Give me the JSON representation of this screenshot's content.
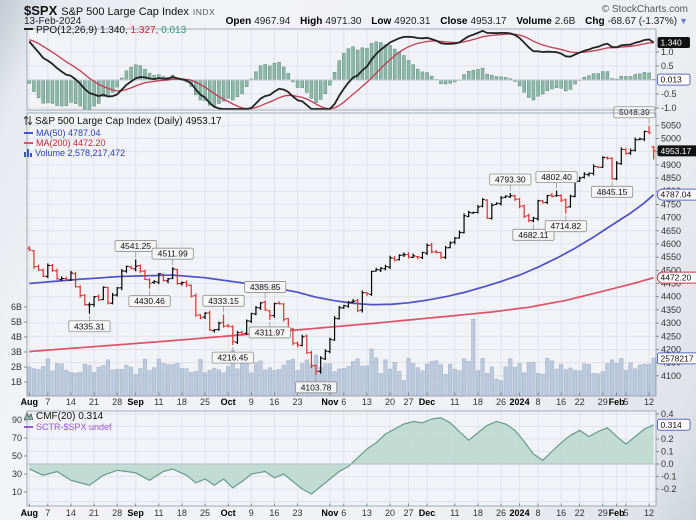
{
  "header": {
    "symbol": "$SPX",
    "name": "S&P 500 Large Cap Index",
    "exchange": "INDX",
    "copyright": "© StockCharts.com",
    "date": "13-Feb-2024",
    "quote": {
      "open_label": "Open",
      "open": "4967.94",
      "high_label": "High",
      "high": "4971.30",
      "low_label": "Low",
      "low": "4920.31",
      "close_label": "Close",
      "close": "4953.17",
      "volume_label": "Volume",
      "volume": "2.6B",
      "chg_label": "Chg",
      "chg": "-68.67 (-1.37%)"
    }
  },
  "ppo_panel": {
    "legend_label": "PPO(12,26,9)",
    "value_main": "1.340,",
    "value_signal": "1.327,",
    "value_hist": "0.013",
    "tag_main": "1.340",
    "tag_hist": "0.013",
    "right_ticks": [
      "1.0",
      "0.5",
      "-0.5",
      "-1.0"
    ]
  },
  "main_panel": {
    "title": "S&P 500 Large Cap Index (Daily) 4953.17",
    "ma50_label": "MA(50) 4787.04",
    "ma200_label": "MA(200) 4472.20",
    "volume_label": "Volume 2,578,217,472",
    "tag_close": "4953.17",
    "tag_ma50": "4787.04",
    "tag_ma200": "4472.20",
    "tag_volume": "2578217",
    "volume_axis_labels": [
      "6B",
      "5B",
      "4B",
      "3B",
      "2B",
      "1B"
    ]
  },
  "cmf_panel": {
    "legend": "CMF(20) 0.314",
    "sctr_legend": "SCTR-$SPX undef",
    "tag": "0.314",
    "right_ticks": [
      "0.4",
      "0.2",
      "0.1",
      "0.0",
      "-0.1",
      "-0.2"
    ],
    "left_ticks": [
      "90",
      "70",
      "50",
      "30",
      "10"
    ]
  },
  "colors": {
    "up": "#000000",
    "down": "#e02e2e",
    "ma50": "#4f51c8",
    "ma200": "#e0506a",
    "volume_fill": "#a8bcd4",
    "volume_edge": "#7e95b5",
    "ppo_line": "#222222",
    "ppo_signal": "#c23b56",
    "ppo_hist_fill": "#8cb8a8",
    "ppo_hist_edge": "#5d8d7d",
    "cmf_fill": "#bcd8cf",
    "cmf_line": "#679b8c",
    "sctr": "#9b59d0",
    "tag_dark": "#111111",
    "tag_blue": "#5b6bc4",
    "tag_red": "#cc3344"
  },
  "chart_data": {
    "type": "candlestick-ohlc",
    "symbol": "$SPX",
    "title": "S&P 500 Large Cap Index (Daily)",
    "date_range": "01-Aug-2023 to 13-Feb-2024",
    "price_axis": {
      "min": 4100,
      "max": 5050,
      "step": 50
    },
    "volume_axis_billions": {
      "min": 1,
      "max": 6,
      "step": 1
    },
    "last_values": {
      "close": 4953.17,
      "ma50": 4787.04,
      "ma200": 4472.2,
      "volume": 2578217472,
      "ppo": 1.34,
      "ppo_signal": 1.327,
      "ppo_hist": 0.013,
      "cmf": 0.314
    },
    "open_first": 4584.0,
    "closes": [
      4576.73,
      4513.39,
      4501.89,
      4478.03,
      4518.44,
      4499.38,
      4467.71,
      4468.83,
      4464.05,
      4489.72,
      4437.86,
      4404.33,
      4370.36,
      4369.71,
      4399.77,
      4387.55,
      4436.01,
      4376.31,
      4405.71,
      4433.31,
      4497.63,
      4514.87,
      4507.66,
      4515.77,
      4496.83,
      4465.48,
      4451.14,
      4457.49,
      4487.46,
      4461.9,
      4467.44,
      4505.1,
      4450.32,
      4453.53,
      4443.95,
      4402.2,
      4330.0,
      4320.06,
      4337.44,
      4273.53,
      4274.51,
      4299.7,
      4288.05,
      4288.39,
      4229.45,
      4263.75,
      4258.19,
      4308.5,
      4335.66,
      4358.24,
      4376.95,
      4349.61,
      4327.78,
      4373.63,
      4373.2,
      4314.6,
      4278.0,
      4224.16,
      4217.04,
      4247.68,
      4186.77,
      4137.23,
      4117.37,
      4166.82,
      4193.8,
      4237.86,
      4317.78,
      4358.34,
      4365.98,
      4378.38,
      4382.78,
      4347.35,
      4415.24,
      4411.55,
      4495.7,
      4502.88,
      4508.24,
      4514.02,
      4547.38,
      4538.19,
      4556.62,
      4559.34,
      4550.43,
      4554.89,
      4550.58,
      4567.8,
      4594.63,
      4569.78,
      4567.18,
      4549.34,
      4585.59,
      4604.37,
      4622.44,
      4643.7,
      4707.09,
      4719.55,
      4719.19,
      4740.56,
      4768.37,
      4698.35,
      4746.75,
      4754.63,
      4774.75,
      4781.58,
      4783.35,
      4769.83,
      4742.83,
      4704.81,
      4688.68,
      4697.24,
      4763.54,
      4756.5,
      4783.45,
      4780.24,
      4783.83,
      4765.98,
      4739.21,
      4780.94,
      4839.81,
      4850.43,
      4864.6,
      4868.55,
      4894.16,
      4890.97,
      4927.93,
      4924.97,
      4845.65,
      4906.19,
      4958.61,
      4942.81,
      4954.23,
      4995.06,
      4997.91,
      5026.61,
      5021.84,
      4953.17
    ],
    "ohlc_overrides": {
      "13": {
        "l": 4335.31
      },
      "23": {
        "h": 4541.25
      },
      "26": {
        "l": 4430.46
      },
      "31": {
        "h": 4511.99
      },
      "42": {
        "h": 4333.15
      },
      "44": {
        "l": 4216.45
      },
      "51": {
        "h": 4385.85
      },
      "52": {
        "l": 4311.97
      },
      "62": {
        "l": 4103.78
      },
      "104": {
        "h": 4793.3
      },
      "109": {
        "l": 4682.11
      },
      "114": {
        "h": 4802.4
      },
      "116": {
        "l": 4714.82
      },
      "126": {
        "l": 4845.15
      },
      "134": {
        "h": 5048.39
      },
      "135": {
        "o": 4967.94,
        "h": 4971.3,
        "l": 4920.31
      }
    },
    "annotations": [
      {
        "day": 13,
        "text": "4335.31",
        "pos": "below"
      },
      {
        "day": 23,
        "text": "4541.25",
        "pos": "above"
      },
      {
        "day": 26,
        "text": "4430.46",
        "pos": "below"
      },
      {
        "day": 31,
        "text": "4511.99",
        "pos": "above"
      },
      {
        "day": 42,
        "text": "4333.15",
        "pos": "above"
      },
      {
        "day": 44,
        "text": "4216.45",
        "pos": "below"
      },
      {
        "day": 51,
        "text": "4385.85",
        "pos": "above"
      },
      {
        "day": 52,
        "text": "4311.97",
        "pos": "below"
      },
      {
        "day": 62,
        "text": "4103.78",
        "pos": "below"
      },
      {
        "day": 104,
        "text": "4793.30",
        "pos": "above"
      },
      {
        "day": 109,
        "text": "4682.11",
        "pos": "below"
      },
      {
        "day": 114,
        "text": "4802.40",
        "pos": "above"
      },
      {
        "day": 116,
        "text": "4714.82",
        "pos": "below"
      },
      {
        "day": 126,
        "text": "4845.15",
        "pos": "below"
      },
      {
        "day": 134,
        "text": "5048.39",
        "pos": "above"
      }
    ],
    "x_ticks": [
      {
        "label": "Aug",
        "day": 0,
        "major": true
      },
      {
        "label": "7",
        "day": 4
      },
      {
        "label": "14",
        "day": 9
      },
      {
        "label": "21",
        "day": 14
      },
      {
        "label": "28",
        "day": 19
      },
      {
        "label": "Sep",
        "day": 23,
        "major": true
      },
      {
        "label": "11",
        "day": 28
      },
      {
        "label": "18",
        "day": 33
      },
      {
        "label": "25",
        "day": 38
      },
      {
        "label": "Oct",
        "day": 43,
        "major": true
      },
      {
        "label": "9",
        "day": 48
      },
      {
        "label": "16",
        "day": 53
      },
      {
        "label": "23",
        "day": 58
      },
      {
        "label": "Nov",
        "day": 65,
        "major": true
      },
      {
        "label": "6",
        "day": 68
      },
      {
        "label": "13",
        "day": 73
      },
      {
        "label": "20",
        "day": 78
      },
      {
        "label": "27",
        "day": 82
      },
      {
        "label": "Dec",
        "day": 86,
        "major": true
      },
      {
        "label": "11",
        "day": 92
      },
      {
        "label": "18",
        "day": 97
      },
      {
        "label": "26",
        "day": 102
      },
      {
        "label": "2024",
        "day": 106,
        "major": true
      },
      {
        "label": "8",
        "day": 110
      },
      {
        "label": "16",
        "day": 115
      },
      {
        "label": "22",
        "day": 119
      },
      {
        "label": "29",
        "day": 124
      },
      {
        "label": "Feb",
        "day": 127,
        "major": true
      },
      {
        "label": "5",
        "day": 129
      },
      {
        "label": "12",
        "day": 134
      }
    ],
    "ma50_points": [
      [
        0,
        4450
      ],
      [
        10,
        4465
      ],
      [
        20,
        4477
      ],
      [
        31,
        4482
      ],
      [
        38,
        4472
      ],
      [
        45,
        4455
      ],
      [
        52,
        4437
      ],
      [
        58,
        4417
      ],
      [
        62,
        4398
      ],
      [
        66,
        4385
      ],
      [
        70,
        4375
      ],
      [
        74,
        4370
      ],
      [
        78,
        4371
      ],
      [
        82,
        4377
      ],
      [
        86,
        4387
      ],
      [
        90,
        4400
      ],
      [
        94,
        4416
      ],
      [
        98,
        4436
      ],
      [
        102,
        4458
      ],
      [
        106,
        4482
      ],
      [
        110,
        4512
      ],
      [
        114,
        4546
      ],
      [
        118,
        4584
      ],
      [
        122,
        4626
      ],
      [
        126,
        4672
      ],
      [
        130,
        4717
      ],
      [
        133,
        4756
      ],
      [
        135,
        4787
      ]
    ],
    "ma200_points": [
      [
        0,
        4192
      ],
      [
        15,
        4212
      ],
      [
        30,
        4232
      ],
      [
        45,
        4254
      ],
      [
        60,
        4277
      ],
      [
        75,
        4300
      ],
      [
        90,
        4325
      ],
      [
        100,
        4342
      ],
      [
        108,
        4360
      ],
      [
        116,
        4386
      ],
      [
        122,
        4412
      ],
      [
        127,
        4434
      ],
      [
        131,
        4452
      ],
      [
        135,
        4472.2
      ]
    ],
    "cmf_points": [
      [
        0,
        -0.04
      ],
      [
        3,
        -0.09
      ],
      [
        6,
        -0.06
      ],
      [
        9,
        -0.13
      ],
      [
        13,
        -0.17
      ],
      [
        16,
        -0.09
      ],
      [
        19,
        -0.05
      ],
      [
        23,
        -0.07
      ],
      [
        26,
        -0.13
      ],
      [
        29,
        -0.06
      ],
      [
        31,
        -0.04
      ],
      [
        34,
        -0.09
      ],
      [
        36,
        -0.15
      ],
      [
        38,
        -0.12
      ],
      [
        40,
        -0.17
      ],
      [
        42,
        -0.12
      ],
      [
        44,
        -0.19
      ],
      [
        46,
        -0.14
      ],
      [
        48,
        -0.08
      ],
      [
        51,
        -0.06
      ],
      [
        53,
        -0.11
      ],
      [
        55,
        -0.08
      ],
      [
        57,
        -0.14
      ],
      [
        59,
        -0.2
      ],
      [
        61,
        -0.24
      ],
      [
        63,
        -0.18
      ],
      [
        65,
        -0.12
      ],
      [
        67,
        -0.06
      ],
      [
        69,
        -0.02
      ],
      [
        71,
        0.05
      ],
      [
        73,
        0.12
      ],
      [
        75,
        0.17
      ],
      [
        77,
        0.24
      ],
      [
        79,
        0.28
      ],
      [
        81,
        0.32
      ],
      [
        83,
        0.34
      ],
      [
        85,
        0.33
      ],
      [
        87,
        0.36
      ],
      [
        89,
        0.37
      ],
      [
        91,
        0.33
      ],
      [
        93,
        0.26
      ],
      [
        95,
        0.19
      ],
      [
        97,
        0.25
      ],
      [
        99,
        0.31
      ],
      [
        101,
        0.34
      ],
      [
        103,
        0.32
      ],
      [
        105,
        0.27
      ],
      [
        107,
        0.18
      ],
      [
        109,
        0.08
      ],
      [
        111,
        0.03
      ],
      [
        113,
        0.1
      ],
      [
        115,
        0.17
      ],
      [
        117,
        0.23
      ],
      [
        119,
        0.27
      ],
      [
        121,
        0.22
      ],
      [
        123,
        0.26
      ],
      [
        125,
        0.29
      ],
      [
        127,
        0.22
      ],
      [
        129,
        0.16
      ],
      [
        131,
        0.22
      ],
      [
        133,
        0.28
      ],
      [
        135,
        0.314
      ]
    ],
    "volume_overrides": {
      "44": 3.1,
      "62": 2.8,
      "74": 3.2,
      "96": 5.2,
      "81": 1.1,
      "101": 1.2,
      "102": 1.1,
      "134": 2.2,
      "135": 2.6
    },
    "ppo_seed": {
      "ema12": 4566,
      "ema26": 4500,
      "signal": 1.45
    }
  }
}
